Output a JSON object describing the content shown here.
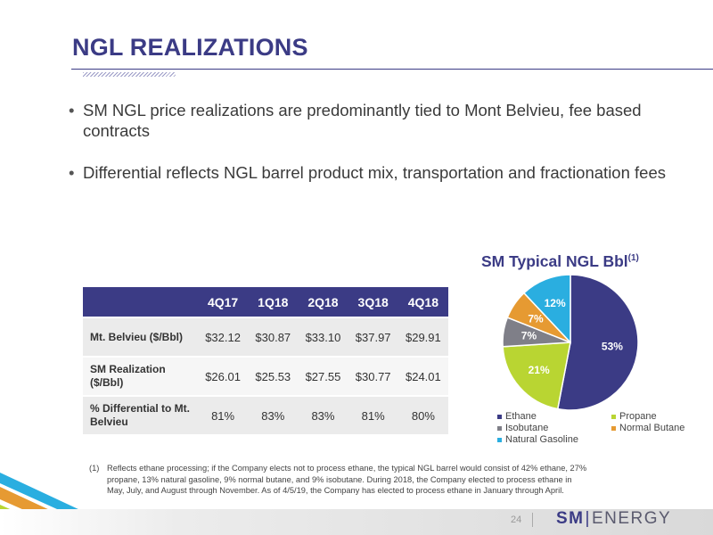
{
  "header": {
    "title": "NGL REALIZATIONS"
  },
  "bullets": [
    "SM NGL price realizations are predominantly tied to Mont Belvieu, fee based contracts",
    "Differential reflects NGL barrel product mix, transportation and fractionation fees"
  ],
  "table": {
    "columns": [
      "4Q17",
      "1Q18",
      "2Q18",
      "3Q18",
      "4Q18"
    ],
    "rows": [
      {
        "label": "Mt. Belvieu ($/Bbl)",
        "values": [
          "$32.12",
          "$30.87",
          "$33.10",
          "$37.97",
          "$29.91"
        ]
      },
      {
        "label": "SM Realization ($/Bbl)",
        "values": [
          "$26.01",
          "$25.53",
          "$27.55",
          "$30.77",
          "$24.01"
        ]
      },
      {
        "label": "% Differential to Mt. Belvieu",
        "values": [
          "81%",
          "83%",
          "83%",
          "81%",
          "80%"
        ]
      }
    ]
  },
  "chart_data": {
    "type": "pie",
    "title": "SM Typical NGL Bbl",
    "title_superscript": "(1)",
    "legend_position": "bottom",
    "slices": [
      {
        "name": "Ethane",
        "value": 53,
        "label": "53%",
        "color": "#3b3b85"
      },
      {
        "name": "Propane",
        "value": 21,
        "label": "21%",
        "color": "#b9d532"
      },
      {
        "name": "Isobutane",
        "value": 7,
        "label": "7%",
        "color": "#7f7f88"
      },
      {
        "name": "Normal Butane",
        "value": 7,
        "label": "7%",
        "color": "#e69a32"
      },
      {
        "name": "Natural Gasoline",
        "value": 12,
        "label": "12%",
        "color": "#2aaee0"
      }
    ],
    "legend_order": [
      "Ethane",
      "Propane",
      "Isobutane",
      "Normal Butane",
      "Natural Gasoline"
    ]
  },
  "footnote": {
    "number": "(1)",
    "text": "Reflects ethane processing; if the Company elects not to process ethane, the typical NGL barrel would consist of 42% ethane, 27% propane, 13% natural gasoline, 9% normal butane, and 9% isobutane. During 2018, the Company elected to process ethane in May, July, and August through November. As of 4/5/19, the Company has elected to process ethane in January through April."
  },
  "footer": {
    "page_number": "24",
    "logo_sm": "SM",
    "logo_energy": "ENERGY"
  },
  "colors": {
    "brand": "#3b3b85",
    "corner_blue": "#2aaee0",
    "corner_orange": "#e69a32",
    "corner_green": "#b9d532"
  }
}
